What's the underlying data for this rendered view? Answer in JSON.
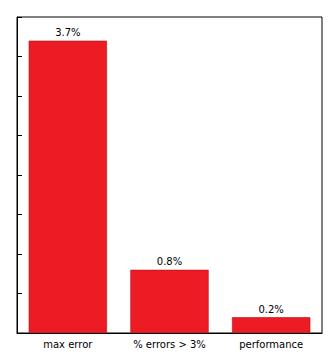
{
  "chart_data": {
    "type": "bar",
    "categories": [
      "max error",
      "% errors > 3%",
      "performance"
    ],
    "values": [
      3.7,
      0.8,
      0.2
    ],
    "value_labels": [
      "3.7%",
      "0.8%",
      "0.2%"
    ],
    "color": "#ed1c24",
    "ylim": [
      0,
      4
    ],
    "yticks": [
      0,
      0.5,
      1,
      1.5,
      2,
      2.5,
      3,
      3.5,
      4
    ],
    "grid": false,
    "data_labels": true,
    "tick_labels": "x"
  }
}
